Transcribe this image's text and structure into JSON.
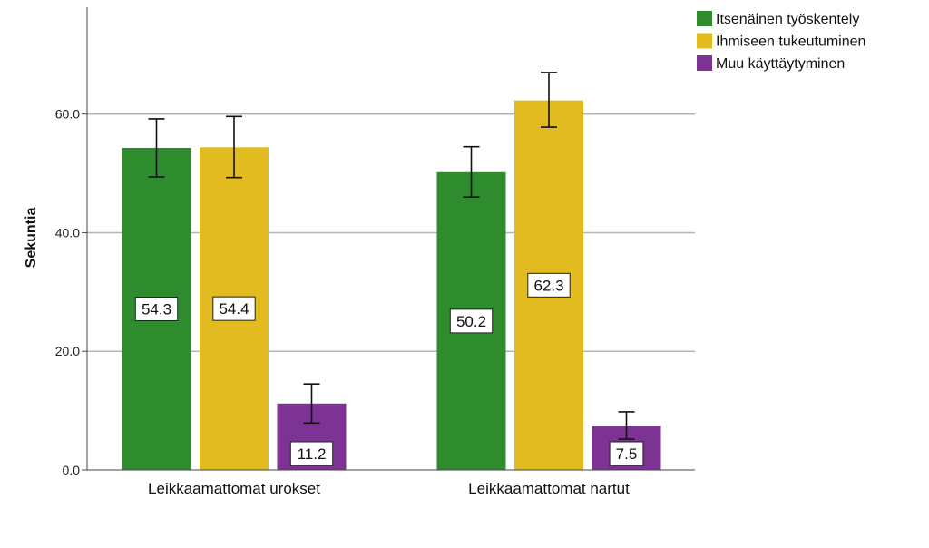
{
  "chart_data": {
    "type": "bar",
    "ylabel": "Sekuntia",
    "xlabel": "",
    "ylim": [
      0,
      78
    ],
    "yticks": [
      "0.0",
      "20.0",
      "40.0",
      "60.0"
    ],
    "grid": true,
    "legend_position": "top-right",
    "categories": [
      "Leikkaamattomat urokset",
      "Leikkaamattomat nartut"
    ],
    "series": [
      {
        "name": "Itsenäinen työskentely",
        "color": "#2e8b2e",
        "values": [
          54.3,
          50.2
        ],
        "labels": [
          "54.3",
          "50.2"
        ],
        "err_low": [
          49.4,
          46.0
        ],
        "err_high": [
          59.2,
          54.5
        ]
      },
      {
        "name": "Ihmiseen tukeutuminen",
        "color": "#e1bb1f",
        "values": [
          54.4,
          62.3
        ],
        "labels": [
          "54.4",
          "62.3"
        ],
        "err_low": [
          49.3,
          57.8
        ],
        "err_high": [
          59.6,
          67.0
        ]
      },
      {
        "name": "Muu käyttäytyminen",
        "color": "#7d3394",
        "values": [
          11.2,
          7.5
        ],
        "labels": [
          "11.2",
          "7.5"
        ],
        "err_low": [
          7.9,
          5.2
        ],
        "err_high": [
          14.5,
          9.8
        ]
      }
    ]
  }
}
